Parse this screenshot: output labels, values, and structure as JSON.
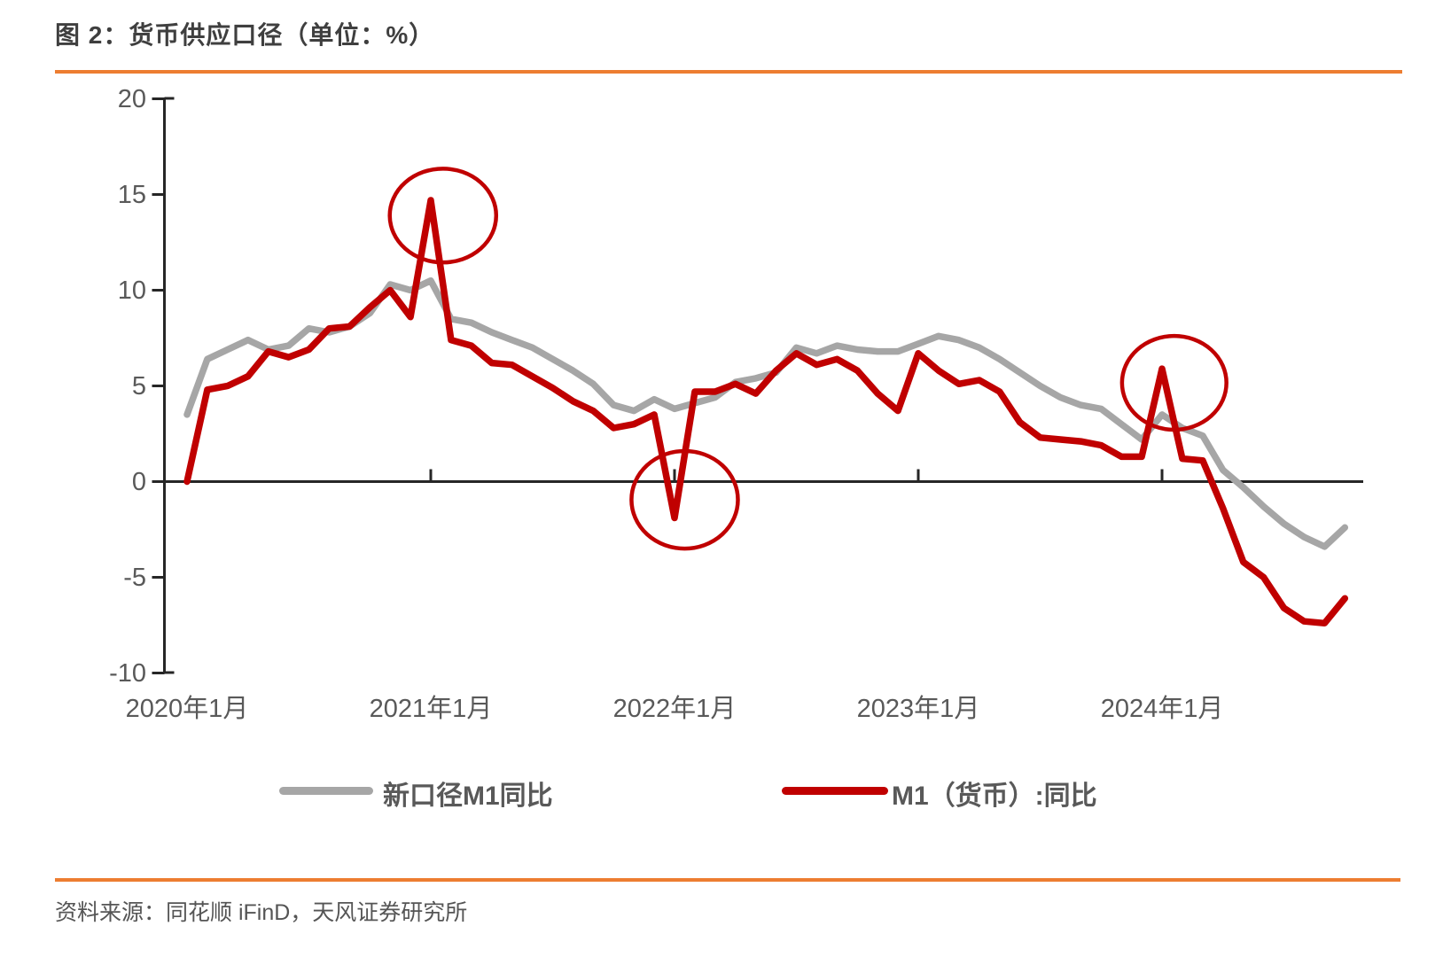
{
  "title": "图 2：货币供应口径（单位：%）",
  "source_note": "资料来源：同花顺 iFinD，天风证券研究所",
  "colors": {
    "accent_rule": "#ed7d31",
    "series_new_caliber": "#a6a6a6",
    "series_old_caliber": "#c00000",
    "annotation_circle": "#c00000",
    "axis": "#262626",
    "label_text": "#595959",
    "title_text": "#3f3f3f"
  },
  "legend": [
    {
      "label": "新口径M1同比",
      "color": "#a6a6a6"
    },
    {
      "label": "M1（货币）:同比",
      "color": "#c00000"
    }
  ],
  "chart_data": {
    "type": "line",
    "title": "货币供应口径",
    "unit": "%",
    "x_start": "2020-01",
    "x_end": "2024-10",
    "x_frequency": "monthly",
    "ylim": [
      -10,
      20
    ],
    "grid": false,
    "legend_position": "bottom",
    "y_ticks": [
      {
        "label": "20",
        "value": 20
      },
      {
        "label": "15",
        "value": 15
      },
      {
        "label": "10",
        "value": 10
      },
      {
        "label": "5",
        "value": 5
      },
      {
        "label": "0",
        "value": 0
      },
      {
        "label": "-5",
        "value": -5
      },
      {
        "label": "-10",
        "value": -10
      }
    ],
    "x_tick_labels": [
      {
        "label": "2020年1月",
        "month_index": 0,
        "axis_tick": false
      },
      {
        "label": "2021年1月",
        "month_index": 12,
        "axis_tick": true
      },
      {
        "label": "2022年1月",
        "month_index": 24,
        "axis_tick": true
      },
      {
        "label": "2023年1月",
        "month_index": 36,
        "axis_tick": true
      },
      {
        "label": "2024年1月",
        "month_index": 48,
        "axis_tick": true
      }
    ],
    "series": [
      {
        "name": "新口径M1同比",
        "color": "#a6a6a6",
        "values": [
          3.5,
          6.4,
          6.9,
          7.4,
          6.9,
          7.1,
          8.0,
          7.8,
          8.1,
          8.8,
          10.3,
          10.0,
          10.5,
          8.5,
          8.3,
          7.8,
          7.4,
          7.0,
          6.4,
          5.8,
          5.1,
          4.0,
          3.7,
          4.3,
          3.8,
          4.1,
          4.4,
          5.2,
          5.4,
          5.7,
          7.0,
          6.7,
          7.1,
          6.9,
          6.8,
          6.8,
          7.2,
          7.6,
          7.4,
          7.0,
          6.4,
          5.7,
          5.0,
          4.4,
          4.0,
          3.8,
          3.0,
          2.2,
          3.5,
          2.8,
          2.4,
          0.6,
          -0.3,
          -1.3,
          -2.2,
          -2.9,
          -3.4,
          -2.4
        ]
      },
      {
        "name": "M1（货币）:同比",
        "color": "#c00000",
        "values": [
          0.0,
          4.8,
          5.0,
          5.5,
          6.8,
          6.5,
          6.9,
          8.0,
          8.1,
          9.1,
          10.0,
          8.6,
          14.7,
          7.4,
          7.1,
          6.2,
          6.1,
          5.5,
          4.9,
          4.2,
          3.7,
          2.8,
          3.0,
          3.5,
          -1.9,
          4.7,
          4.7,
          5.1,
          4.6,
          5.8,
          6.7,
          6.1,
          6.4,
          5.8,
          4.6,
          3.7,
          6.7,
          5.8,
          5.1,
          5.3,
          4.7,
          3.1,
          2.3,
          2.2,
          2.1,
          1.9,
          1.3,
          1.3,
          5.9,
          1.2,
          1.1,
          -1.4,
          -4.2,
          -5.0,
          -6.6,
          -7.3,
          -7.4,
          -6.1
        ]
      }
    ],
    "annotations": [
      {
        "type": "ellipse",
        "note": "2021年1月M1同比跳升",
        "month_index": 12.6,
        "value": 13.9,
        "rx_months": 2.62,
        "ry_units": 2.45
      },
      {
        "type": "ellipse",
        "note": "2022年1月M1同比转负",
        "month_index": 24.5,
        "value": -0.95,
        "rx_months": 2.62,
        "ry_units": 2.55
      },
      {
        "type": "ellipse",
        "note": "2024年1月M1同比跳升",
        "month_index": 48.6,
        "value": 5.16,
        "rx_months": 2.57,
        "ry_units": 2.45
      }
    ]
  }
}
